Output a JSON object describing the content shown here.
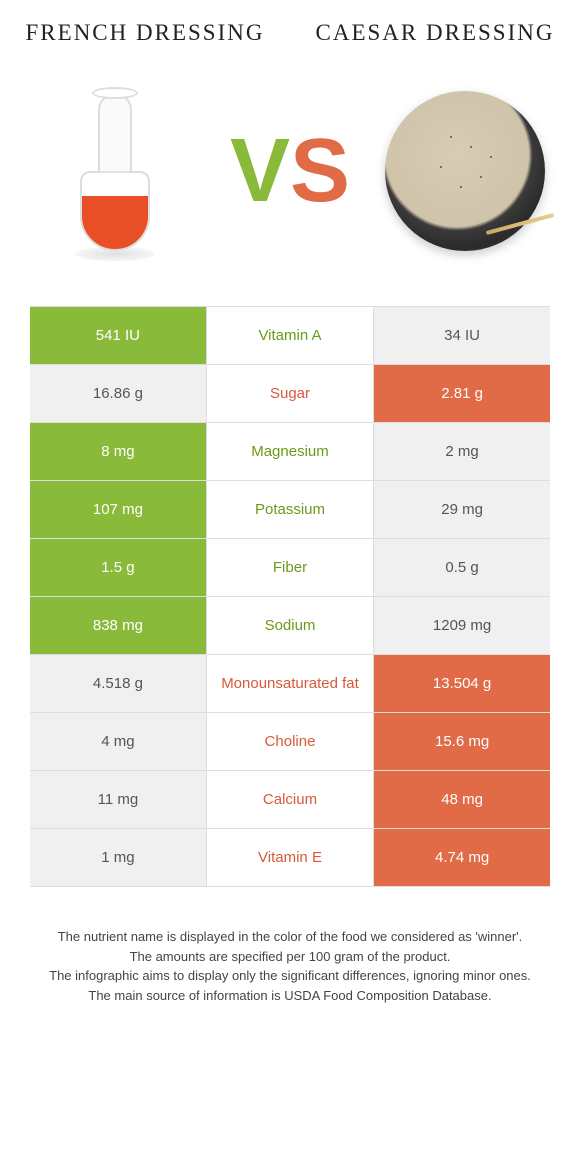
{
  "left": {
    "title": "FRENCH DRESSING"
  },
  "right": {
    "title": "CAESAR DRESSING"
  },
  "vs": {
    "v": "V",
    "s": "S"
  },
  "colors": {
    "green": "#8aba3a",
    "orange": "#e16a47",
    "green_text": "#6a9a1a",
    "orange_text": "#d85a38",
    "grey": "#f0f0f0"
  },
  "table": {
    "rows": [
      {
        "nutrient": "Vitamin A",
        "left": "541 IU",
        "right": "34 IU",
        "winner": "left"
      },
      {
        "nutrient": "Sugar",
        "left": "16.86 g",
        "right": "2.81 g",
        "winner": "right"
      },
      {
        "nutrient": "Magnesium",
        "left": "8 mg",
        "right": "2 mg",
        "winner": "left"
      },
      {
        "nutrient": "Potassium",
        "left": "107 mg",
        "right": "29 mg",
        "winner": "left"
      },
      {
        "nutrient": "Fiber",
        "left": "1.5 g",
        "right": "0.5 g",
        "winner": "left"
      },
      {
        "nutrient": "Sodium",
        "left": "838 mg",
        "right": "1209 mg",
        "winner": "left"
      },
      {
        "nutrient": "Monounsaturated fat",
        "left": "4.518 g",
        "right": "13.504 g",
        "winner": "right"
      },
      {
        "nutrient": "Choline",
        "left": "4 mg",
        "right": "15.6 mg",
        "winner": "right"
      },
      {
        "nutrient": "Calcium",
        "left": "11 mg",
        "right": "48 mg",
        "winner": "right"
      },
      {
        "nutrient": "Vitamin E",
        "left": "1 mg",
        "right": "4.74 mg",
        "winner": "right"
      }
    ]
  },
  "footer": {
    "l1": "The nutrient name is displayed in the color of the food we considered as 'winner'.",
    "l2": "The amounts are specified per 100 gram of the product.",
    "l3": "The infographic aims to display only the significant differences, ignoring minor ones.",
    "l4": "The main source of information is USDA Food Composition Database."
  }
}
